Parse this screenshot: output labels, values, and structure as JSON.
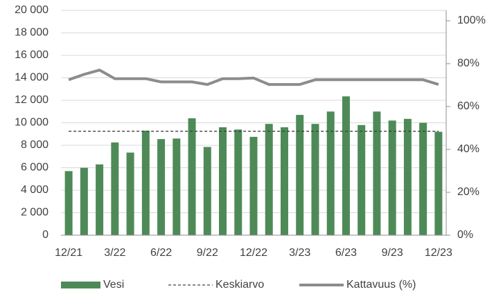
{
  "chart_data": {
    "type": "bar",
    "categories": [
      "12/21",
      null,
      null,
      "3/22",
      null,
      null,
      "6/22",
      null,
      null,
      "9/22",
      null,
      null,
      "12/22",
      null,
      null,
      "3/23",
      null,
      null,
      "6/23",
      null,
      null,
      "9/23",
      null,
      null,
      "12/23"
    ],
    "series": [
      {
        "name": "Vesi",
        "type": "bar",
        "color": "#4e8a58",
        "values": [
          5700,
          6000,
          6300,
          8250,
          7350,
          9300,
          8550,
          8600,
          10400,
          7850,
          9600,
          9400,
          8750,
          9900,
          9600,
          10700,
          9900,
          11000,
          12350,
          9800,
          11000,
          10200,
          10350,
          10000,
          9200
        ]
      },
      {
        "name": "Keskiarvo",
        "type": "line",
        "dashed": true,
        "color": "#404040",
        "values": [
          9250,
          9250,
          9250,
          9250,
          9250,
          9250,
          9250,
          9250,
          9250,
          9250,
          9250,
          9250,
          9250,
          9250,
          9250,
          9250,
          9250,
          9250,
          9250,
          9250,
          9250,
          9250,
          9250,
          9250,
          9250
        ]
      },
      {
        "name": "Kattavuus (%)",
        "type": "line",
        "axis": "y2",
        "color": "#8c8c8c",
        "values": [
          72.5,
          75,
          77,
          73,
          73,
          73,
          71.5,
          71.5,
          71.5,
          70.3,
          73,
          73,
          73.3,
          70.3,
          70.3,
          70.3,
          72.5,
          72.5,
          72.5,
          72.5,
          72.5,
          72.5,
          72.5,
          72.5,
          70.3
        ]
      }
    ],
    "ylim": [
      0,
      20000
    ],
    "yticks": [
      0,
      {
        "value": 2000,
        "label": "2 000"
      },
      {
        "value": 4000,
        "label": "4 000"
      },
      {
        "value": 6000,
        "label": "6 000"
      },
      {
        "value": 8000,
        "label": "8 000"
      },
      {
        "value": 10000,
        "label": "10 000"
      },
      {
        "value": 12000,
        "label": "12 000"
      },
      {
        "value": 14000,
        "label": "14 000"
      },
      {
        "value": 16000,
        "label": "16 000"
      },
      {
        "value": 18000,
        "label": "18 000"
      },
      {
        "value": 20000,
        "label": "20 000"
      }
    ],
    "y2lim": [
      0,
      100
    ],
    "y2ticks": [
      {
        "value": 0,
        "label": "0%"
      },
      {
        "value": 20,
        "label": "20%"
      },
      {
        "value": 40,
        "label": "40%"
      },
      {
        "value": 60,
        "label": "60%"
      },
      {
        "value": 80,
        "label": "80%"
      },
      {
        "value": 100,
        "label": "100%"
      }
    ],
    "grid": true,
    "legend": "bottom"
  }
}
